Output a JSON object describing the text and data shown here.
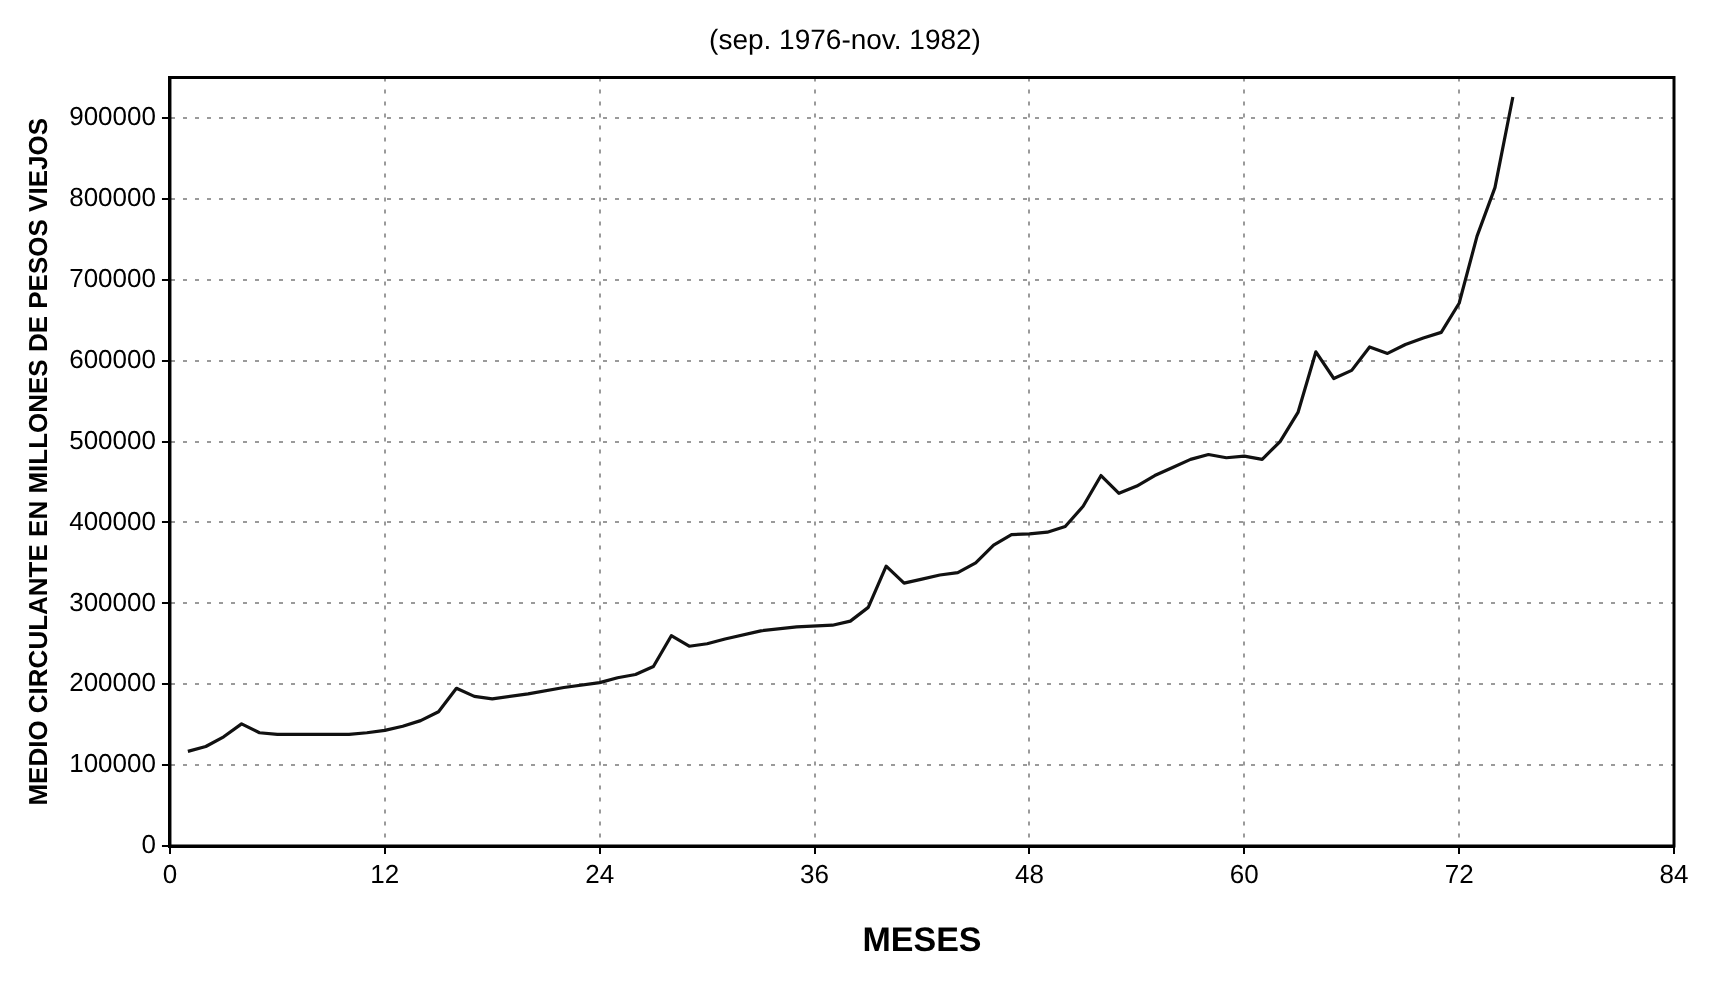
{
  "chart_data": {
    "type": "line",
    "title": "(sep. 1976-nov. 1982)",
    "xlabel": "MESES",
    "ylabel": "MEDIO CIRCULANTE EN MILLONES DE PESOS VIEJOS",
    "x": [
      1,
      2,
      3,
      4,
      5,
      6,
      8,
      10,
      11,
      12,
      13,
      14,
      15,
      16,
      17,
      18,
      20,
      22,
      24,
      25,
      26,
      27,
      28,
      29,
      30,
      31,
      33,
      35,
      37,
      38,
      39,
      40,
      41,
      42,
      43,
      44,
      45,
      46,
      47,
      48,
      49,
      50,
      51,
      52,
      53,
      54,
      55,
      56,
      57,
      58,
      59,
      60,
      61,
      62,
      63,
      64,
      65,
      66,
      67,
      68,
      69,
      70,
      71,
      72,
      73,
      74,
      75
    ],
    "series": [
      {
        "color": "#111111",
        "values": [
          117000,
          123000,
          135000,
          151000,
          140000,
          138000,
          138000,
          138000,
          140000,
          143000,
          148000,
          155000,
          166000,
          195000,
          185000,
          182000,
          188000,
          196000,
          202000,
          208000,
          212000,
          222000,
          260000,
          247000,
          250000,
          256000,
          266000,
          271000,
          273000,
          278000,
          295000,
          346000,
          325000,
          330000,
          335000,
          338000,
          350000,
          372000,
          385000,
          386000,
          388000,
          395000,
          420000,
          458000,
          436000,
          445000,
          458000,
          468000,
          478000,
          484000,
          480000,
          482000,
          478000,
          500000,
          536000,
          611000,
          578000,
          588000,
          617000,
          609000,
          620000,
          628000,
          635000,
          671000,
          754000,
          814000,
          926000
        ]
      }
    ],
    "xlim": [
      0,
      84
    ],
    "xticks": [
      0,
      12,
      24,
      36,
      48,
      60,
      72,
      84
    ],
    "ylim": [
      0,
      950000
    ],
    "yticks": [
      0,
      100000,
      200000,
      300000,
      400000,
      500000,
      600000,
      700000,
      800000,
      900000
    ],
    "grid": true,
    "legend": false,
    "marker": "none",
    "line_style": "solid"
  }
}
